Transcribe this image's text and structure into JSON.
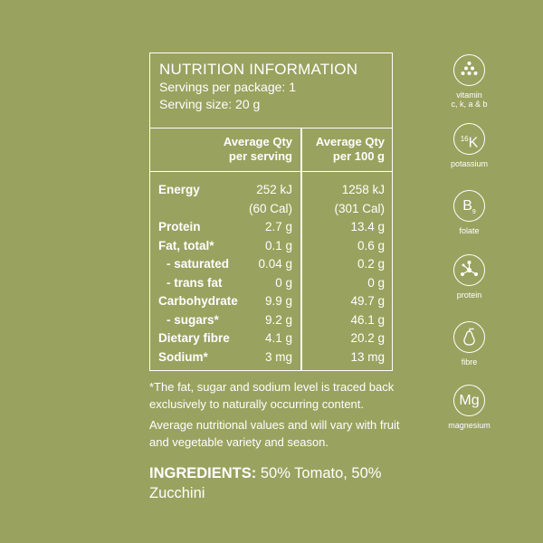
{
  "nutrition": {
    "title": "NUTRITION INFORMATION",
    "servings_per_package": "Servings per package: 1",
    "serving_size": "Serving size: 20 g",
    "col1_header_l1": "Average Qty",
    "col1_header_l2": "per serving",
    "col2_header_l1": "Average Qty",
    "col2_header_l2": "per 100 g",
    "rows": [
      {
        "label": "Energy",
        "v1": "252 kJ",
        "v2": "1258 kJ"
      },
      {
        "label": "",
        "v1": "(60 Cal)",
        "v2": "(301 Cal)"
      },
      {
        "label": "Protein",
        "v1": "2.7 g",
        "v2": "13.4 g"
      },
      {
        "label": "Fat, total*",
        "v1": "0.1 g",
        "v2": "0.6 g"
      },
      {
        "label": "- saturated",
        "v1": "0.04 g",
        "v2": "0.2 g"
      },
      {
        "label": "- trans fat",
        "v1": "0 g",
        "v2": "0 g"
      },
      {
        "label": "Carbohydrate",
        "v1": "9.9 g",
        "v2": "49.7 g"
      },
      {
        "label": "- sugars*",
        "v1": "9.2 g",
        "v2": "46.1 g"
      },
      {
        "label": "Dietary fibre",
        "v1": "4.1 g",
        "v2": "20.2 g"
      },
      {
        "label": "Sodium*",
        "v1": "3 mg",
        "v2": "13 mg"
      }
    ]
  },
  "notes": {
    "note1": "*The fat, sugar and sodium level is traced back exclusively to naturally occurring content.",
    "note2": "Average nutritional values and will vary with fruit and vegetable variety and season."
  },
  "ingredients": {
    "heading": "INGREDIENTS:",
    "text": " 50% Tomato, 50% Zucchini"
  },
  "icons": [
    {
      "name": "vitamin-icon",
      "label_l1": "vitamin",
      "label_l2": "c, k, a & b"
    },
    {
      "name": "potassium-icon",
      "symbol": "K",
      "sup": "16",
      "label_l1": "potassium"
    },
    {
      "name": "folate-icon",
      "symbol": "B",
      "sub": "9",
      "label_l1": "folate"
    },
    {
      "name": "protein-icon",
      "label_l1": "protein"
    },
    {
      "name": "fibre-icon",
      "label_l1": "fibre"
    },
    {
      "name": "magnesium-icon",
      "symbol": "Mg",
      "label_l1": "magnesium"
    }
  ]
}
